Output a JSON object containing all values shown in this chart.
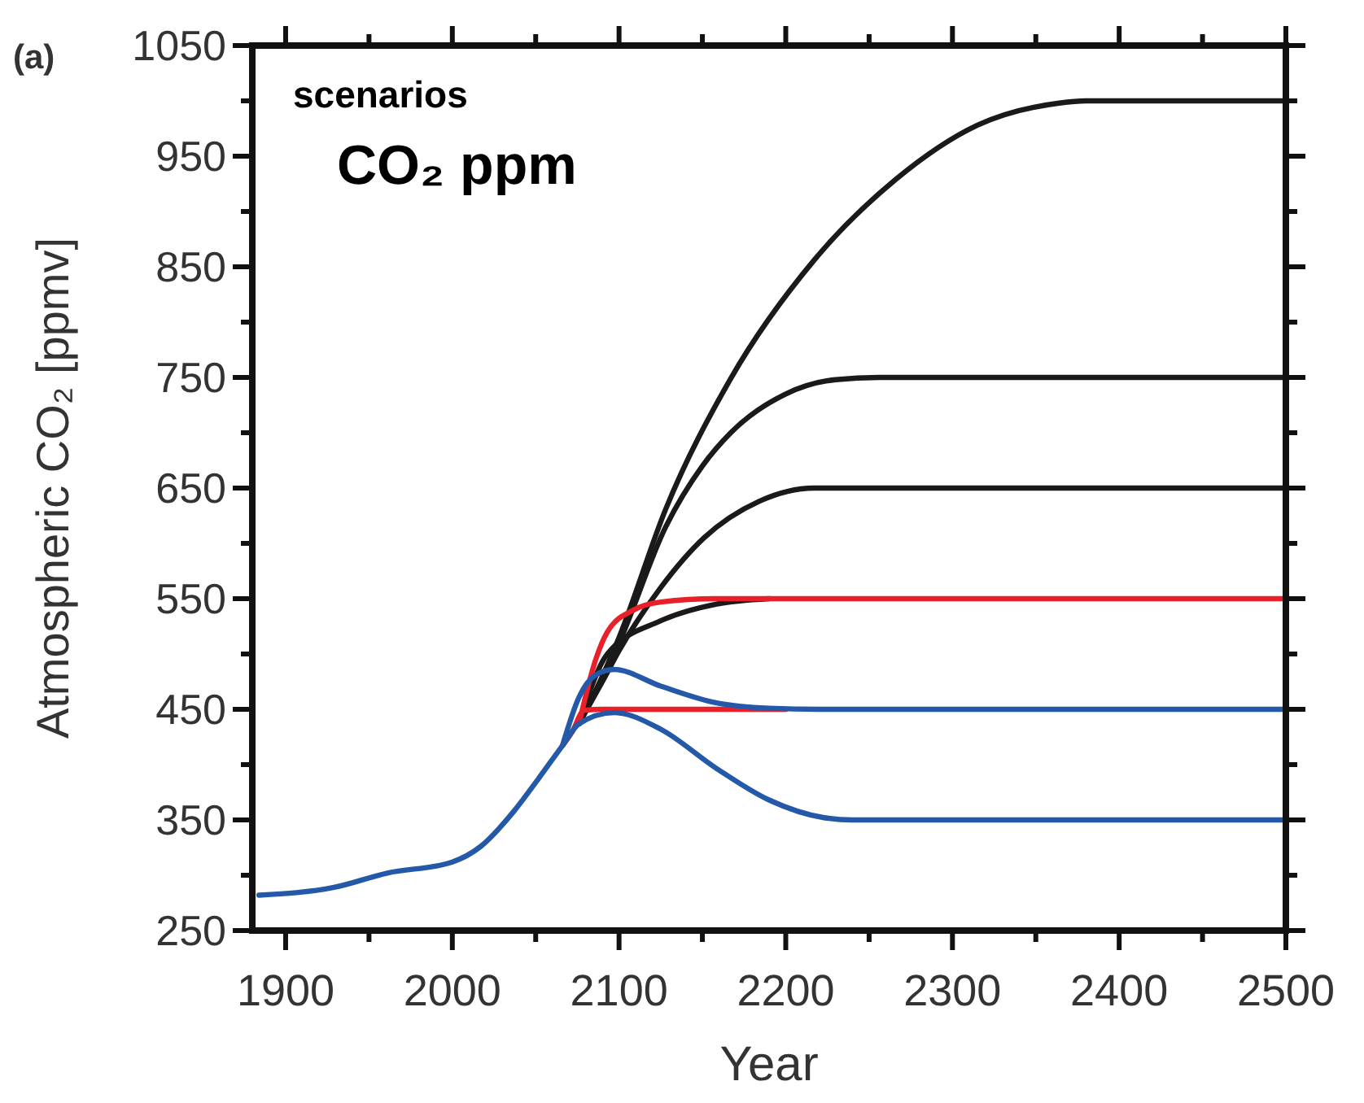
{
  "chart_data": {
    "type": "line",
    "xlabel": "Year",
    "ylabel": "Atmospheric CO₂ [ppmv]",
    "annotations": [
      "(a)",
      "scenarios",
      "CO₂ ppm"
    ],
    "xlim": [
      1880,
      2500
    ],
    "ylim": [
      250,
      1050
    ],
    "xticks": [
      1900,
      {
        "value": 1950,
        "label": null
      },
      2000,
      {
        "value": 2050,
        "label": null
      },
      2100,
      {
        "value": 2150,
        "label": null
      },
      2200,
      {
        "value": 2250,
        "label": null
      },
      2300,
      {
        "value": 2350,
        "label": null
      },
      2400,
      {
        "value": 2450,
        "label": null
      },
      2500
    ],
    "yticks": [
      250,
      {
        "value": 300,
        "label": null
      },
      350,
      {
        "value": 400,
        "label": null
      },
      450,
      {
        "value": 500,
        "label": null
      },
      550,
      {
        "value": 600,
        "label": null
      },
      650,
      {
        "value": 700,
        "label": null
      },
      750,
      {
        "value": 800,
        "label": null
      },
      850,
      {
        "value": 900,
        "label": null
      },
      950,
      {
        "value": 1000,
        "label": null
      },
      1050
    ],
    "grid": false,
    "marker": "none",
    "line_style": "solid",
    "series": [
      {
        "color": "#1a1a1a",
        "x": [
          2076,
          2090,
          2100,
          2128,
          2167,
          2217,
          2266,
          2315,
          2364,
          2380,
          2500
        ],
        "values": [
          437,
          480,
          515,
          631,
          749,
          856,
          929,
          978,
          998,
          1000,
          1000
        ]
      },
      {
        "color": "#1a1a1a",
        "x": [
          2076,
          2090,
          2100,
          2128,
          2150,
          2167,
          2200,
          2230,
          2256,
          2500
        ],
        "values": [
          437,
          478,
          510,
          615,
          670,
          700,
          735,
          748,
          750,
          750
        ]
      },
      {
        "color": "#1a1a1a",
        "x": [
          2076,
          2090,
          2100,
          2125,
          2151,
          2184,
          2217,
          2500
        ],
        "values": [
          437,
          475,
          503,
          560,
          605,
          638,
          650,
          650
        ]
      },
      {
        "color": "#1a1a1a",
        "x": [
          2076,
          2093,
          2125,
          2158,
          2190
        ],
        "values": [
          437,
          500,
          530,
          545,
          550
        ]
      },
      {
        "color": "#e8202a",
        "x": [
          2076,
          2086,
          2093,
          2109,
          2125,
          2158,
          2500
        ],
        "values": [
          437,
          495,
          520,
          540,
          547,
          550,
          550
        ]
      },
      {
        "color": "#e8202a",
        "x": [
          2066,
          2072,
          2079,
          2090,
          2200
        ],
        "values": [
          417,
          430,
          449,
          450,
          450
        ]
      },
      {
        "color": "#2458a8",
        "x": [
          2066,
          2076,
          2086,
          2097,
          2125,
          2158,
          2190,
          2220,
          2500
        ],
        "values": [
          417,
          461,
          481,
          486,
          471,
          456,
          451,
          450,
          450
        ]
      },
      {
        "color": "#2458a8",
        "x": [
          1884,
          1929,
          1961,
          2000,
          2017,
          2037,
          2052,
          2066,
          2076,
          2097,
          2125,
          2158,
          2190,
          2223,
          2240,
          2500
        ],
        "values": [
          282,
          289,
          302,
          312,
          326,
          358,
          388,
          417,
          437,
          447,
          432,
          397,
          368,
          352,
          350,
          350
        ]
      }
    ]
  }
}
